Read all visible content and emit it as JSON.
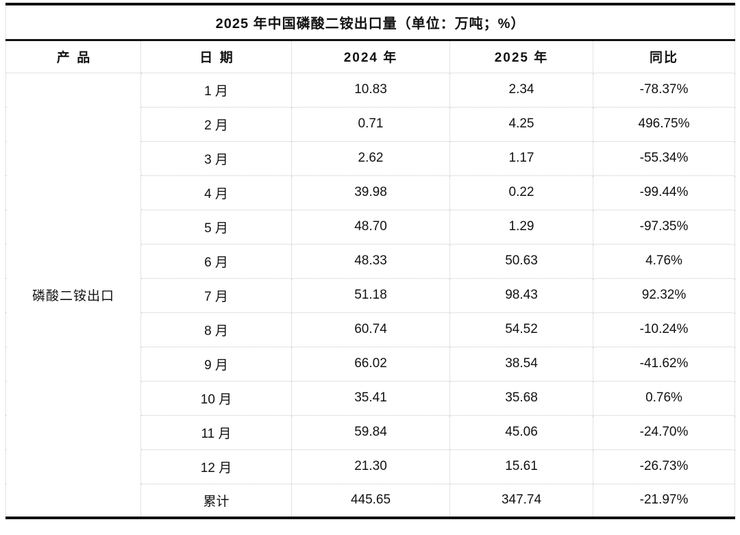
{
  "colors": {
    "strong_line": "#111111",
    "grid_line": "#c6c6c6",
    "text": "#111111",
    "background": "#ffffff"
  },
  "table": {
    "title": "2025 年中国磷酸二铵出口量（单位：万吨；%）",
    "columns": [
      "产品",
      "日期",
      "2024 年",
      "2025 年",
      "同比"
    ],
    "product": "磷酸二铵出口",
    "rows": [
      {
        "date": "1 月",
        "y2024": "10.83",
        "y2025": "2.34",
        "yoy": "-78.37%"
      },
      {
        "date": "2 月",
        "y2024": "0.71",
        "y2025": "4.25",
        "yoy": "496.75%"
      },
      {
        "date": "3 月",
        "y2024": "2.62",
        "y2025": "1.17",
        "yoy": "-55.34%"
      },
      {
        "date": "4 月",
        "y2024": "39.98",
        "y2025": "0.22",
        "yoy": "-99.44%"
      },
      {
        "date": "5 月",
        "y2024": "48.70",
        "y2025": "1.29",
        "yoy": "-97.35%"
      },
      {
        "date": "6 月",
        "y2024": "48.33",
        "y2025": "50.63",
        "yoy": "4.76%"
      },
      {
        "date": "7 月",
        "y2024": "51.18",
        "y2025": "98.43",
        "yoy": "92.32%"
      },
      {
        "date": "8 月",
        "y2024": "60.74",
        "y2025": "54.52",
        "yoy": "-10.24%"
      },
      {
        "date": "9 月",
        "y2024": "66.02",
        "y2025": "38.54",
        "yoy": "-41.62%"
      },
      {
        "date": "10 月",
        "y2024": "35.41",
        "y2025": "35.68",
        "yoy": "0.76%"
      },
      {
        "date": "11 月",
        "y2024": "59.84",
        "y2025": "45.06",
        "yoy": "-24.70%"
      },
      {
        "date": "12 月",
        "y2024": "21.30",
        "y2025": "15.61",
        "yoy": "-26.73%"
      },
      {
        "date": "累计",
        "y2024": "445.65",
        "y2025": "347.74",
        "yoy": "-21.97%"
      }
    ]
  },
  "chart_data": {
    "type": "table",
    "title": "2025 年中国磷酸二铵出口量（单位：万吨；%）",
    "columns": [
      "产品",
      "日期",
      "2024 年",
      "2025 年",
      "同比"
    ],
    "product": "磷酸二铵出口",
    "categories": [
      "1 月",
      "2 月",
      "3 月",
      "4 月",
      "5 月",
      "6 月",
      "7 月",
      "8 月",
      "9 月",
      "10 月",
      "11 月",
      "12 月",
      "累计"
    ],
    "series": [
      {
        "name": "2024 年",
        "unit": "万吨",
        "values": [
          10.83,
          0.71,
          2.62,
          39.98,
          48.7,
          48.33,
          51.18,
          60.74,
          66.02,
          35.41,
          59.84,
          21.3,
          445.65
        ]
      },
      {
        "name": "2025 年",
        "unit": "万吨",
        "values": [
          2.34,
          4.25,
          1.17,
          0.22,
          1.29,
          50.63,
          98.43,
          54.52,
          38.54,
          35.68,
          45.06,
          15.61,
          347.74
        ]
      },
      {
        "name": "同比",
        "unit": "%",
        "values": [
          -78.37,
          496.75,
          -55.34,
          -99.44,
          -97.35,
          4.76,
          92.32,
          -10.24,
          -41.62,
          0.76,
          -24.7,
          -26.73,
          -21.97
        ]
      }
    ]
  }
}
